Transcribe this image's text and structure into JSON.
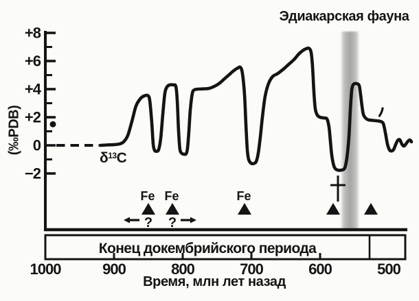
{
  "chart_data": {
    "type": "line",
    "title": "Эдиакарская фауна",
    "xlabel": "Время, млн лет назад",
    "ylabel": "(‰PDB)",
    "series_label": {
      "delta": "δ",
      "sup": "13",
      "c": "C"
    },
    "xlim_ma": [
      1000,
      466
    ],
    "ylim_permil": [
      -6,
      8
    ],
    "x_ticks": [
      {
        "ma": 1000,
        "label": "1000"
      },
      {
        "ma": 900,
        "label": "900"
      },
      {
        "ma": 800,
        "label": "800"
      },
      {
        "ma": 700,
        "label": "700"
      },
      {
        "ma": 600,
        "label": "600"
      },
      {
        "ma": 500,
        "label": "500"
      }
    ],
    "y_major_ticks": [
      {
        "permil": 8,
        "label": "+8"
      },
      {
        "permil": 6,
        "label": "+6"
      },
      {
        "permil": 4,
        "label": "+4"
      },
      {
        "permil": 2,
        "label": "+2"
      },
      {
        "permil": 0,
        "label": "0"
      },
      {
        "permil": -2,
        "label": "−2"
      }
    ],
    "y_minor_ticks_permil": [
      7,
      5,
      3,
      1,
      -1
    ],
    "zero_baseline_dashed_ma": [
      984,
      922
    ],
    "isolated_point": {
      "ma": 989,
      "permil": 1.5
    },
    "ediacaran_band_ma": [
      570,
      543
    ],
    "curve_points_ma_permil": [
      [
        920,
        0
      ],
      [
        910,
        0.03
      ],
      [
        900,
        0.05
      ],
      [
        892,
        0.1
      ],
      [
        886,
        0.25
      ],
      [
        880,
        0.7
      ],
      [
        874,
        1.7
      ],
      [
        868,
        2.8
      ],
      [
        862,
        3.3
      ],
      [
        857,
        3.5
      ],
      [
        851,
        3.55
      ],
      [
        848,
        3.2
      ],
      [
        845,
        1.6
      ],
      [
        843,
        0.1
      ],
      [
        841,
        -0.35
      ],
      [
        838,
        -0.42
      ],
      [
        835,
        -0.3
      ],
      [
        832,
        0.5
      ],
      [
        829,
        2.2
      ],
      [
        826,
        3.7
      ],
      [
        823,
        4.15
      ],
      [
        819,
        4.3
      ],
      [
        814,
        4.3
      ],
      [
        810,
        4.2
      ],
      [
        808,
        3.2
      ],
      [
        806,
        1.0
      ],
      [
        804,
        -0.3
      ],
      [
        801,
        -0.58
      ],
      [
        798,
        -0.63
      ],
      [
        795,
        -0.6
      ],
      [
        793,
        -0.2
      ],
      [
        791,
        1.0
      ],
      [
        789,
        2.5
      ],
      [
        786,
        3.7
      ],
      [
        783,
        3.95
      ],
      [
        778,
        4.0
      ],
      [
        770,
        4.02
      ],
      [
        762,
        4.05
      ],
      [
        754,
        4.2
      ],
      [
        747,
        4.4
      ],
      [
        740,
        4.7
      ],
      [
        733,
        5.0
      ],
      [
        726,
        5.3
      ],
      [
        720,
        5.5
      ],
      [
        716,
        5.55
      ],
      [
        713,
        5.1
      ],
      [
        710,
        3.6
      ],
      [
        708,
        1.5
      ],
      [
        706,
        -0.3
      ],
      [
        704,
        -1.0
      ],
      [
        701,
        -1.25
      ],
      [
        697,
        -1.3
      ],
      [
        693,
        -1.15
      ],
      [
        690,
        -0.55
      ],
      [
        687,
        0.6
      ],
      [
        684,
        2.0
      ],
      [
        680,
        3.5
      ],
      [
        675,
        4.4
      ],
      [
        669,
        4.9
      ],
      [
        662,
        5.1
      ],
      [
        654,
        5.4
      ],
      [
        646,
        5.75
      ],
      [
        638,
        6.1
      ],
      [
        631,
        6.5
      ],
      [
        625,
        6.75
      ],
      [
        620,
        6.88
      ],
      [
        616,
        6.9
      ],
      [
        613,
        6.6
      ],
      [
        611,
        5.6
      ],
      [
        609,
        3.8
      ],
      [
        607,
        2.6
      ],
      [
        604,
        2.15
      ],
      [
        600,
        2.0
      ],
      [
        595,
        1.95
      ],
      [
        590,
        1.88
      ],
      [
        587,
        1.3
      ],
      [
        585,
        0.3
      ],
      [
        583,
        -0.7
      ],
      [
        580,
        -1.45
      ],
      [
        577,
        -1.7
      ],
      [
        573,
        -1.77
      ],
      [
        568,
        -1.75
      ],
      [
        564,
        -1.6
      ],
      [
        561,
        -0.9
      ],
      [
        558,
        0.6
      ],
      [
        556,
        2.5
      ],
      [
        554,
        3.9
      ],
      [
        552,
        4.3
      ],
      [
        549,
        4.4
      ],
      [
        546,
        4.38
      ],
      [
        543,
        4.25
      ],
      [
        541,
        3.6
      ],
      [
        539,
        2.8
      ],
      [
        537,
        2.2
      ],
      [
        534,
        1.95
      ],
      [
        530,
        1.82
      ],
      [
        524,
        1.78
      ],
      [
        518,
        1.75
      ],
      [
        512,
        1.7
      ],
      [
        508,
        1.55
      ],
      [
        505,
        0.9
      ],
      [
        502,
        0.1
      ],
      [
        499,
        -0.32
      ],
      [
        496,
        -0.4
      ],
      [
        493,
        -0.3
      ],
      [
        490,
        0.05
      ],
      [
        487,
        0.35
      ],
      [
        484,
        0.4
      ],
      [
        481,
        0.1
      ],
      [
        478,
        -0.05
      ],
      [
        475,
        0.1
      ],
      [
        472,
        0.3
      ],
      [
        469,
        0.38
      ],
      [
        467,
        0.25
      ]
    ],
    "fe_markers": [
      {
        "ma": 850,
        "label": "Fe",
        "query": "?",
        "arrow": "left"
      },
      {
        "ma": 815,
        "label": "Fe",
        "query": "?",
        "arrow": "right"
      },
      {
        "ma": 710,
        "label": "Fe"
      },
      {
        "ma": 581
      },
      {
        "ma": 526
      }
    ],
    "extinction_cross_ma": 574,
    "timescale_bar": {
      "label": "Конец докембрийского периода",
      "start_ma": 1000,
      "end_ma": 476,
      "divider_ma": 528,
      "tick_ma": [
        900,
        800,
        700,
        600
      ]
    },
    "line_color": "#141414",
    "band_color": "#a3a3a3"
  }
}
